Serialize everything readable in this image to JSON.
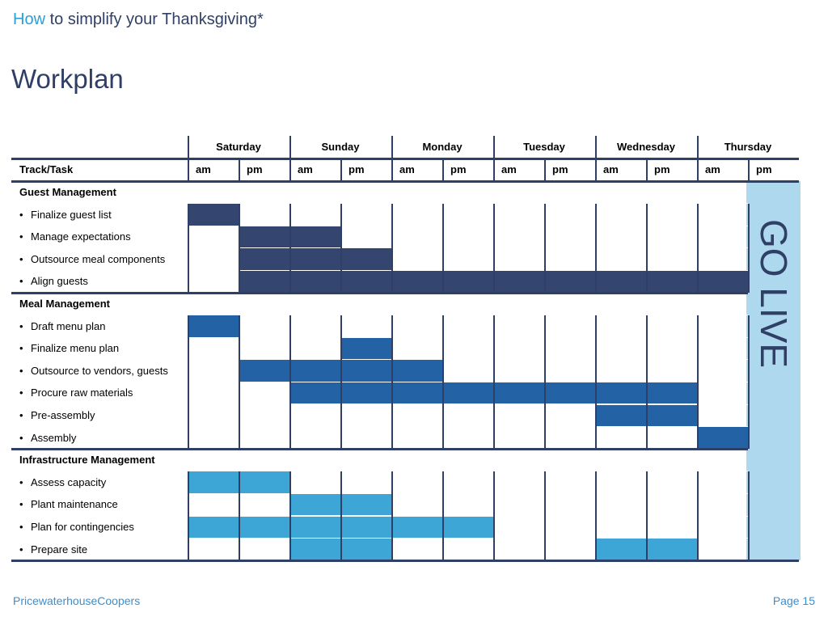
{
  "header": {
    "accent_word": "How",
    "rest": "to simplify your Thanksgiving*"
  },
  "title": "Workplan",
  "footer": {
    "company": "PricewaterhouseCoopers",
    "page": "Page 15"
  },
  "colors": {
    "navy": "#344570",
    "medium_blue": "#2462a6",
    "light_blue": "#3ea6d6",
    "go_live_panel": "#aed8ee",
    "text_dark": "#2f3f66",
    "accent_blue": "#2aa0d6"
  },
  "table": {
    "track_task_header": "Track/Task",
    "days": [
      "Saturday",
      "Sunday",
      "Monday",
      "Tuesday",
      "Wednesday",
      "Thursday"
    ],
    "halves": [
      "am",
      "pm"
    ],
    "go_live_label": "GO LIVE",
    "rows": [
      {
        "label": "Guest Management",
        "group": true
      },
      {
        "label": "Finalize guest list",
        "start": 0,
        "end": 0,
        "color": "navy"
      },
      {
        "label": "Manage expectations",
        "start": 1,
        "end": 2,
        "color": "navy"
      },
      {
        "label": "Outsource meal components",
        "start": 1,
        "end": 3,
        "color": "navy"
      },
      {
        "label": "Align guests",
        "start": 1,
        "end": 10,
        "color": "navy"
      },
      {
        "label": "Meal Management",
        "group": true
      },
      {
        "label": "Draft menu plan",
        "start": 0,
        "end": 0,
        "color": "medium_blue"
      },
      {
        "label": "Finalize menu plan",
        "start": 3,
        "end": 3,
        "color": "medium_blue"
      },
      {
        "label": "Outsource to vendors, guests",
        "start": 1,
        "end": 4,
        "color": "medium_blue"
      },
      {
        "label": "Procure raw materials",
        "start": 2,
        "end": 9,
        "color": "medium_blue"
      },
      {
        "label": "Pre-assembly",
        "start": 8,
        "end": 9,
        "color": "medium_blue"
      },
      {
        "label": "Assembly",
        "start": 10,
        "end": 10,
        "color": "medium_blue"
      },
      {
        "label": "Infrastructure Management",
        "group": true
      },
      {
        "label": "Assess capacity",
        "start": 0,
        "end": 1,
        "color": "light_blue"
      },
      {
        "label": "Plant maintenance",
        "start": 2,
        "end": 3,
        "color": "light_blue"
      },
      {
        "label": "Plan for contingencies",
        "start": 0,
        "end": 5,
        "color": "light_blue"
      },
      {
        "label": "Prepare site",
        "start": 2,
        "end": 3,
        "color": "light_blue",
        "extra": [
          8,
          9
        ]
      }
    ]
  }
}
